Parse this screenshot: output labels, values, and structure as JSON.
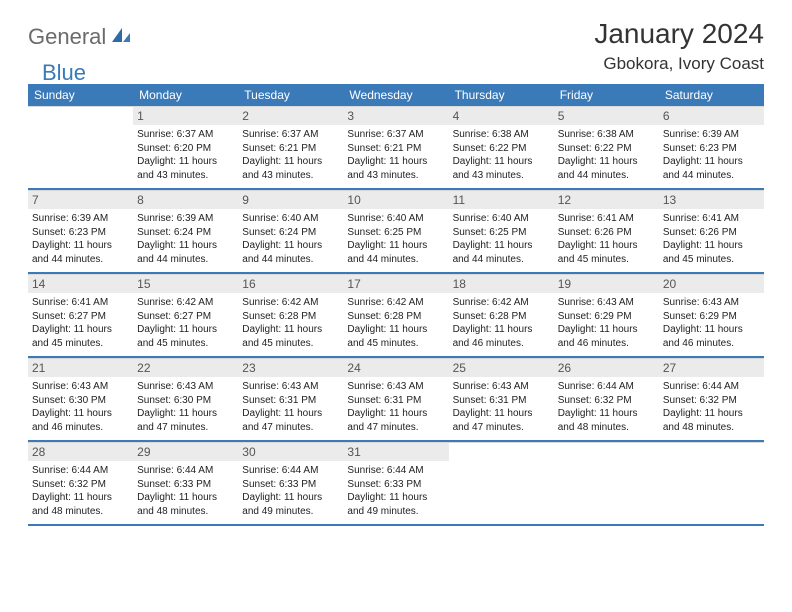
{
  "logo": {
    "word1": "General",
    "word2": "Blue"
  },
  "title": "January 2024",
  "location": "Gbokora, Ivory Coast",
  "colors": {
    "header_bg": "#3a7ab8",
    "daynum_bg": "#ebebeb",
    "text": "#222222",
    "logo_gray": "#6b6b6b",
    "logo_blue": "#3a7ab8"
  },
  "day_names": [
    "Sunday",
    "Monday",
    "Tuesday",
    "Wednesday",
    "Thursday",
    "Friday",
    "Saturday"
  ],
  "weeks": [
    [
      null,
      {
        "n": "1",
        "sr": "Sunrise: 6:37 AM",
        "ss": "Sunset: 6:20 PM",
        "d1": "Daylight: 11 hours",
        "d2": "and 43 minutes."
      },
      {
        "n": "2",
        "sr": "Sunrise: 6:37 AM",
        "ss": "Sunset: 6:21 PM",
        "d1": "Daylight: 11 hours",
        "d2": "and 43 minutes."
      },
      {
        "n": "3",
        "sr": "Sunrise: 6:37 AM",
        "ss": "Sunset: 6:21 PM",
        "d1": "Daylight: 11 hours",
        "d2": "and 43 minutes."
      },
      {
        "n": "4",
        "sr": "Sunrise: 6:38 AM",
        "ss": "Sunset: 6:22 PM",
        "d1": "Daylight: 11 hours",
        "d2": "and 43 minutes."
      },
      {
        "n": "5",
        "sr": "Sunrise: 6:38 AM",
        "ss": "Sunset: 6:22 PM",
        "d1": "Daylight: 11 hours",
        "d2": "and 44 minutes."
      },
      {
        "n": "6",
        "sr": "Sunrise: 6:39 AM",
        "ss": "Sunset: 6:23 PM",
        "d1": "Daylight: 11 hours",
        "d2": "and 44 minutes."
      }
    ],
    [
      {
        "n": "7",
        "sr": "Sunrise: 6:39 AM",
        "ss": "Sunset: 6:23 PM",
        "d1": "Daylight: 11 hours",
        "d2": "and 44 minutes."
      },
      {
        "n": "8",
        "sr": "Sunrise: 6:39 AM",
        "ss": "Sunset: 6:24 PM",
        "d1": "Daylight: 11 hours",
        "d2": "and 44 minutes."
      },
      {
        "n": "9",
        "sr": "Sunrise: 6:40 AM",
        "ss": "Sunset: 6:24 PM",
        "d1": "Daylight: 11 hours",
        "d2": "and 44 minutes."
      },
      {
        "n": "10",
        "sr": "Sunrise: 6:40 AM",
        "ss": "Sunset: 6:25 PM",
        "d1": "Daylight: 11 hours",
        "d2": "and 44 minutes."
      },
      {
        "n": "11",
        "sr": "Sunrise: 6:40 AM",
        "ss": "Sunset: 6:25 PM",
        "d1": "Daylight: 11 hours",
        "d2": "and 44 minutes."
      },
      {
        "n": "12",
        "sr": "Sunrise: 6:41 AM",
        "ss": "Sunset: 6:26 PM",
        "d1": "Daylight: 11 hours",
        "d2": "and 45 minutes."
      },
      {
        "n": "13",
        "sr": "Sunrise: 6:41 AM",
        "ss": "Sunset: 6:26 PM",
        "d1": "Daylight: 11 hours",
        "d2": "and 45 minutes."
      }
    ],
    [
      {
        "n": "14",
        "sr": "Sunrise: 6:41 AM",
        "ss": "Sunset: 6:27 PM",
        "d1": "Daylight: 11 hours",
        "d2": "and 45 minutes."
      },
      {
        "n": "15",
        "sr": "Sunrise: 6:42 AM",
        "ss": "Sunset: 6:27 PM",
        "d1": "Daylight: 11 hours",
        "d2": "and 45 minutes."
      },
      {
        "n": "16",
        "sr": "Sunrise: 6:42 AM",
        "ss": "Sunset: 6:28 PM",
        "d1": "Daylight: 11 hours",
        "d2": "and 45 minutes."
      },
      {
        "n": "17",
        "sr": "Sunrise: 6:42 AM",
        "ss": "Sunset: 6:28 PM",
        "d1": "Daylight: 11 hours",
        "d2": "and 45 minutes."
      },
      {
        "n": "18",
        "sr": "Sunrise: 6:42 AM",
        "ss": "Sunset: 6:28 PM",
        "d1": "Daylight: 11 hours",
        "d2": "and 46 minutes."
      },
      {
        "n": "19",
        "sr": "Sunrise: 6:43 AM",
        "ss": "Sunset: 6:29 PM",
        "d1": "Daylight: 11 hours",
        "d2": "and 46 minutes."
      },
      {
        "n": "20",
        "sr": "Sunrise: 6:43 AM",
        "ss": "Sunset: 6:29 PM",
        "d1": "Daylight: 11 hours",
        "d2": "and 46 minutes."
      }
    ],
    [
      {
        "n": "21",
        "sr": "Sunrise: 6:43 AM",
        "ss": "Sunset: 6:30 PM",
        "d1": "Daylight: 11 hours",
        "d2": "and 46 minutes."
      },
      {
        "n": "22",
        "sr": "Sunrise: 6:43 AM",
        "ss": "Sunset: 6:30 PM",
        "d1": "Daylight: 11 hours",
        "d2": "and 47 minutes."
      },
      {
        "n": "23",
        "sr": "Sunrise: 6:43 AM",
        "ss": "Sunset: 6:31 PM",
        "d1": "Daylight: 11 hours",
        "d2": "and 47 minutes."
      },
      {
        "n": "24",
        "sr": "Sunrise: 6:43 AM",
        "ss": "Sunset: 6:31 PM",
        "d1": "Daylight: 11 hours",
        "d2": "and 47 minutes."
      },
      {
        "n": "25",
        "sr": "Sunrise: 6:43 AM",
        "ss": "Sunset: 6:31 PM",
        "d1": "Daylight: 11 hours",
        "d2": "and 47 minutes."
      },
      {
        "n": "26",
        "sr": "Sunrise: 6:44 AM",
        "ss": "Sunset: 6:32 PM",
        "d1": "Daylight: 11 hours",
        "d2": "and 48 minutes."
      },
      {
        "n": "27",
        "sr": "Sunrise: 6:44 AM",
        "ss": "Sunset: 6:32 PM",
        "d1": "Daylight: 11 hours",
        "d2": "and 48 minutes."
      }
    ],
    [
      {
        "n": "28",
        "sr": "Sunrise: 6:44 AM",
        "ss": "Sunset: 6:32 PM",
        "d1": "Daylight: 11 hours",
        "d2": "and 48 minutes."
      },
      {
        "n": "29",
        "sr": "Sunrise: 6:44 AM",
        "ss": "Sunset: 6:33 PM",
        "d1": "Daylight: 11 hours",
        "d2": "and 48 minutes."
      },
      {
        "n": "30",
        "sr": "Sunrise: 6:44 AM",
        "ss": "Sunset: 6:33 PM",
        "d1": "Daylight: 11 hours",
        "d2": "and 49 minutes."
      },
      {
        "n": "31",
        "sr": "Sunrise: 6:44 AM",
        "ss": "Sunset: 6:33 PM",
        "d1": "Daylight: 11 hours",
        "d2": "and 49 minutes."
      },
      null,
      null,
      null
    ]
  ]
}
